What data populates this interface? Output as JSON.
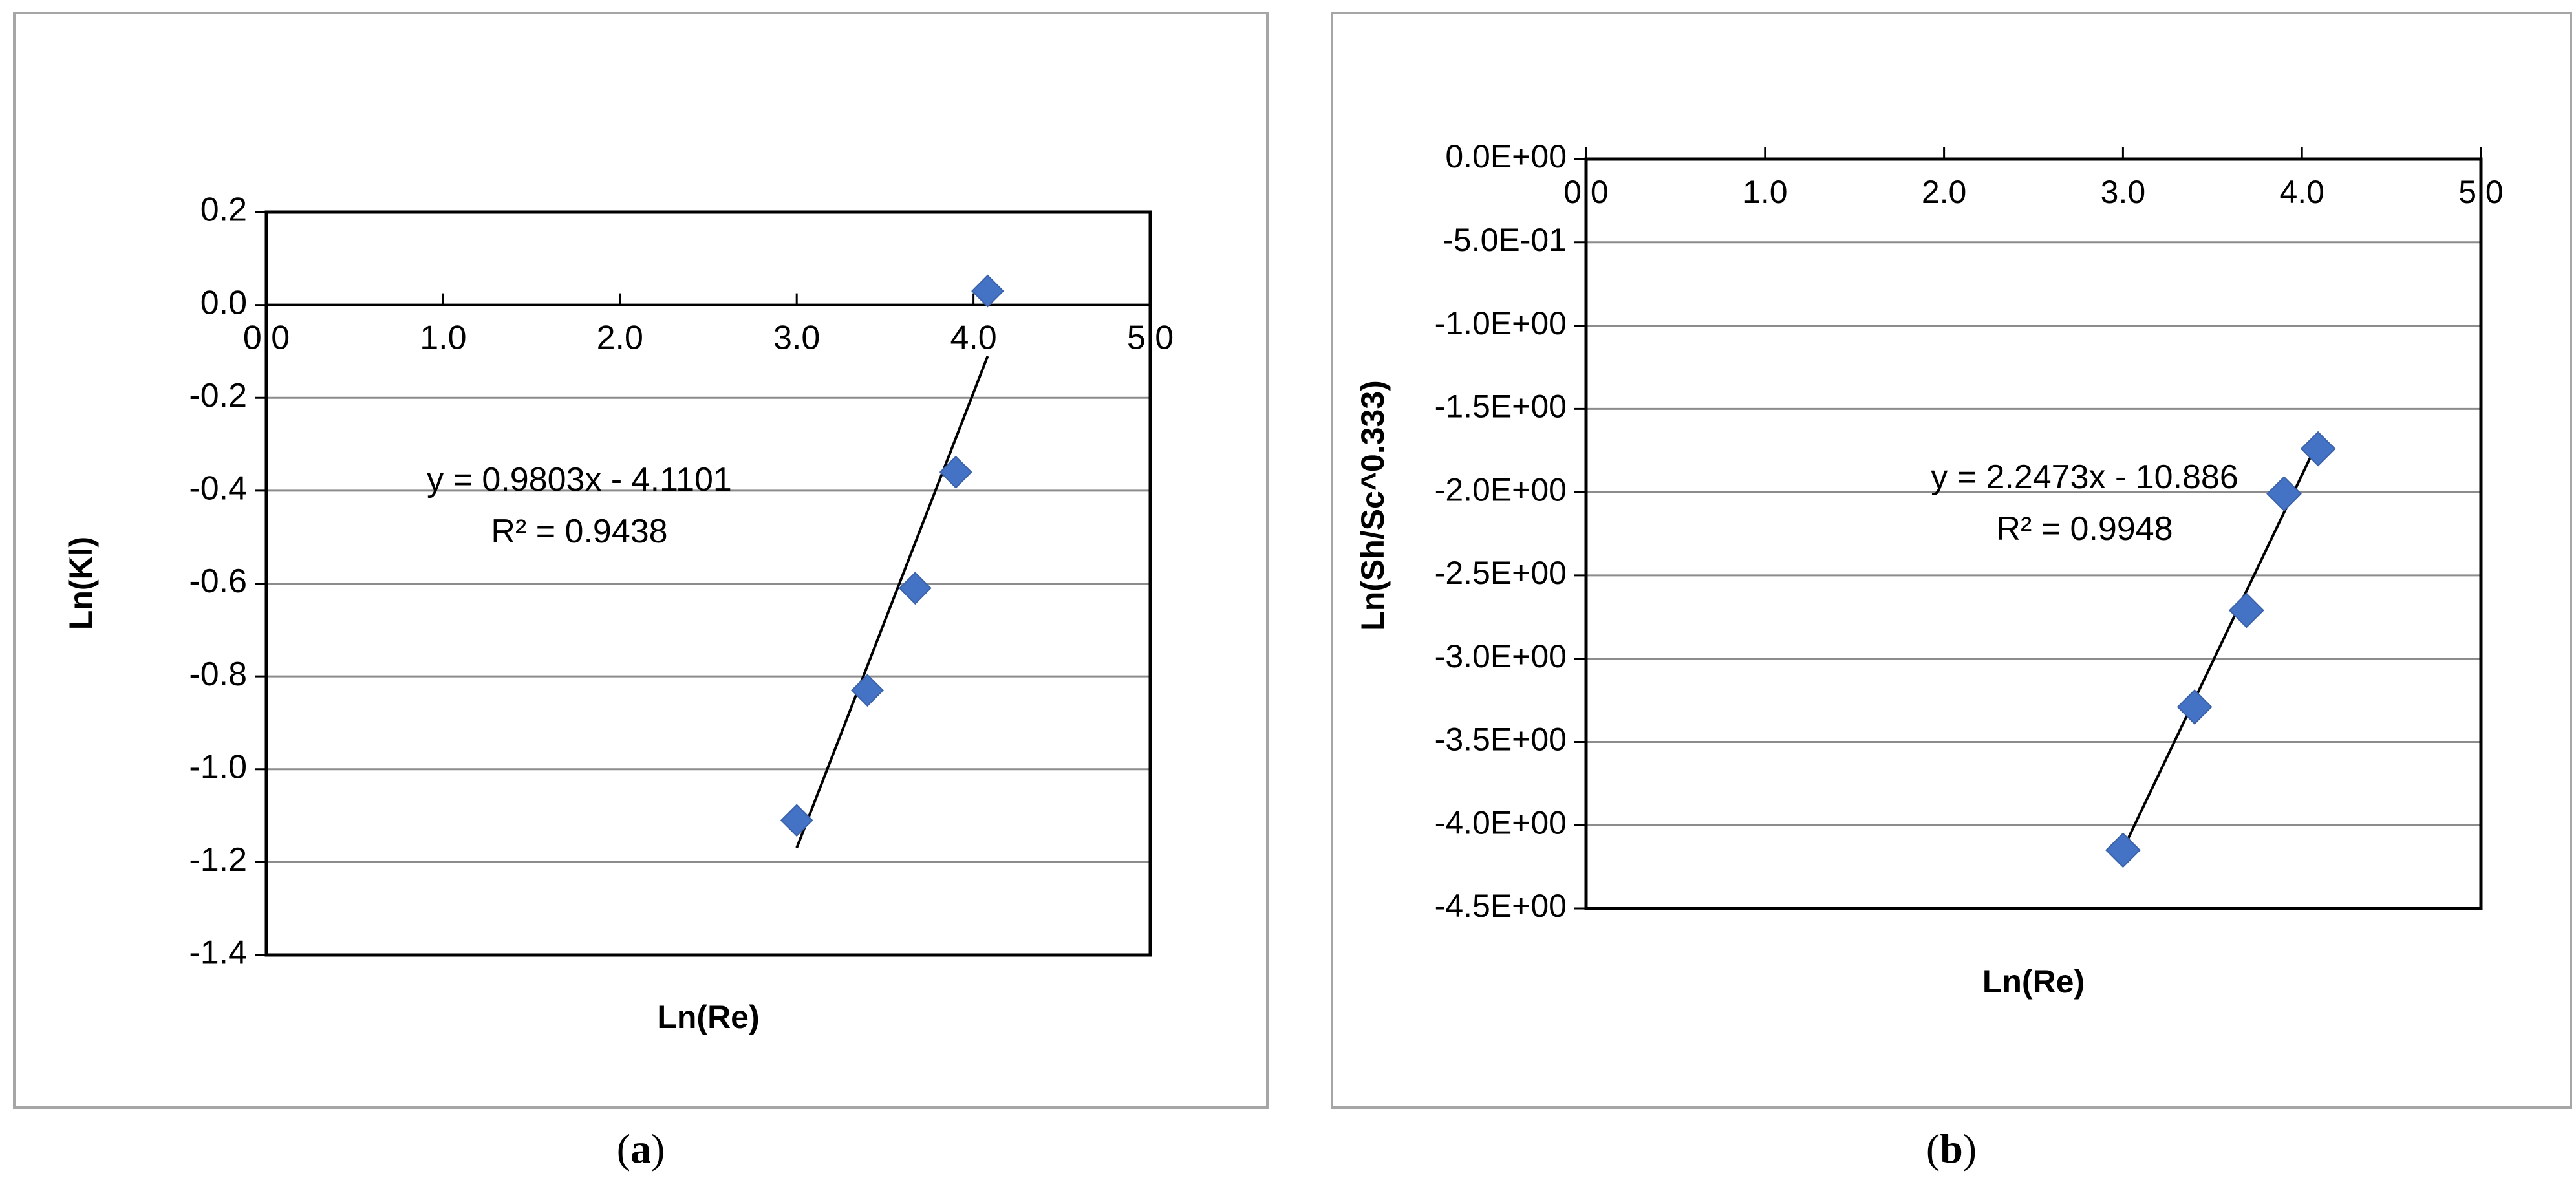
{
  "figure": {
    "caption_a": {
      "open": "(",
      "letter": "a",
      "close": ")"
    },
    "caption_b": {
      "open": "(",
      "letter": "b",
      "close": ")"
    }
  },
  "chart_data": [
    {
      "id": "a",
      "type": "scatter",
      "xlabel": "Ln(Re)",
      "ylabel": "Ln(Kl)",
      "xlim": [
        0,
        5
      ],
      "ylim": [
        -1.4,
        0.2
      ],
      "x_ticks": [
        0,
        1,
        2,
        3,
        4,
        5
      ],
      "x_tick_labels": [
        "0.0",
        "1.0",
        "2.0",
        "3.0",
        "4.0",
        "5.0"
      ],
      "y_ticks": [
        0.2,
        0.0,
        -0.2,
        -0.4,
        -0.6,
        -0.8,
        -1.0,
        -1.2,
        -1.4
      ],
      "y_tick_labels": [
        "0.2",
        "0.0",
        "-0.2",
        "-0.4",
        "-0.6",
        "-0.8",
        "-1.0",
        "-1.2",
        "-1.4"
      ],
      "x_axis_at": 0,
      "grid": true,
      "marker_color": "#4472c4",
      "points": [
        {
          "x": 3.0,
          "y": -1.11
        },
        {
          "x": 3.4,
          "y": -0.83
        },
        {
          "x": 3.67,
          "y": -0.61
        },
        {
          "x": 3.9,
          "y": -0.36
        },
        {
          "x": 4.08,
          "y": 0.03
        }
      ],
      "trendline": {
        "slope": 0.9803,
        "intercept": -4.1101,
        "x_range": [
          3.0,
          4.08
        ]
      },
      "equation_label": "y = 0.9803x - 4.1101",
      "r2_label": "R² = 0.9438"
    },
    {
      "id": "b",
      "type": "scatter",
      "xlabel": "Ln(Re)",
      "ylabel": "Ln(Sh/Sc^0.333)",
      "xlim": [
        0,
        5
      ],
      "ylim": [
        -4.5,
        0
      ],
      "x_ticks": [
        0,
        1,
        2,
        3,
        4,
        5
      ],
      "x_tick_labels": [
        "0.0",
        "1.0",
        "2.0",
        "3.0",
        "4.0",
        "5.0"
      ],
      "y_ticks": [
        0,
        -0.5,
        -1.0,
        -1.5,
        -2.0,
        -2.5,
        -3.0,
        -3.5,
        -4.0,
        -4.5
      ],
      "y_tick_labels": [
        "0.0E+00",
        "-5.0E-01",
        "-1.0E+00",
        "-1.5E+00",
        "-2.0E+00",
        "-2.5E+00",
        "-3.0E+00",
        "-3.5E+00",
        "-4.0E+00",
        "-4.5E+00"
      ],
      "x_axis_at": 0,
      "grid": true,
      "marker_color": "#4472c4",
      "points": [
        {
          "x": 3.0,
          "y": -4.15
        },
        {
          "x": 3.4,
          "y": -3.29
        },
        {
          "x": 3.69,
          "y": -2.71
        },
        {
          "x": 3.9,
          "y": -2.01
        },
        {
          "x": 4.09,
          "y": -1.74
        }
      ],
      "trendline": {
        "slope": 2.2473,
        "intercept": -10.886,
        "x_range": [
          3.0,
          4.09
        ]
      },
      "equation_label": "y = 2.2473x - 10.886",
      "r2_label": "R² = 0.9948"
    }
  ]
}
